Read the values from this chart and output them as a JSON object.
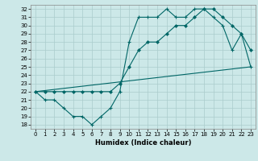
{
  "xlabel": "Humidex (Indice chaleur)",
  "bg_color": "#cce8e8",
  "grid_color": "#aacccc",
  "line_color": "#006666",
  "xlim": [
    -0.5,
    23.5
  ],
  "ylim": [
    17.5,
    32.5
  ],
  "xticks": [
    0,
    1,
    2,
    3,
    4,
    5,
    6,
    7,
    8,
    9,
    10,
    11,
    12,
    13,
    14,
    15,
    16,
    17,
    18,
    19,
    20,
    21,
    22,
    23
  ],
  "yticks": [
    18,
    19,
    20,
    21,
    22,
    23,
    24,
    25,
    26,
    27,
    28,
    29,
    30,
    31,
    32
  ],
  "curve_plus_x": [
    0,
    1,
    2,
    3,
    4,
    5,
    6,
    7,
    8,
    9,
    10,
    11,
    12,
    13,
    14,
    15,
    16,
    17,
    18,
    19,
    20,
    21,
    22,
    23
  ],
  "curve_plus_y": [
    22,
    21,
    21,
    20,
    19,
    19,
    18,
    19,
    20,
    22,
    28,
    31,
    31,
    31,
    32,
    31,
    31,
    32,
    32,
    31,
    30,
    27,
    29,
    25
  ],
  "curve_diamond_x": [
    0,
    1,
    2,
    3,
    4,
    5,
    6,
    7,
    8,
    9,
    10,
    11,
    12,
    13,
    14,
    15,
    16,
    17,
    18,
    19,
    20,
    21,
    22,
    23
  ],
  "curve_diamond_y": [
    22,
    22,
    22,
    22,
    22,
    22,
    22,
    22,
    22,
    23,
    25,
    27,
    28,
    28,
    29,
    30,
    30,
    31,
    32,
    32,
    31,
    30,
    29,
    27
  ],
  "curve_line_x": [
    0,
    23
  ],
  "curve_line_y": [
    22,
    25
  ]
}
